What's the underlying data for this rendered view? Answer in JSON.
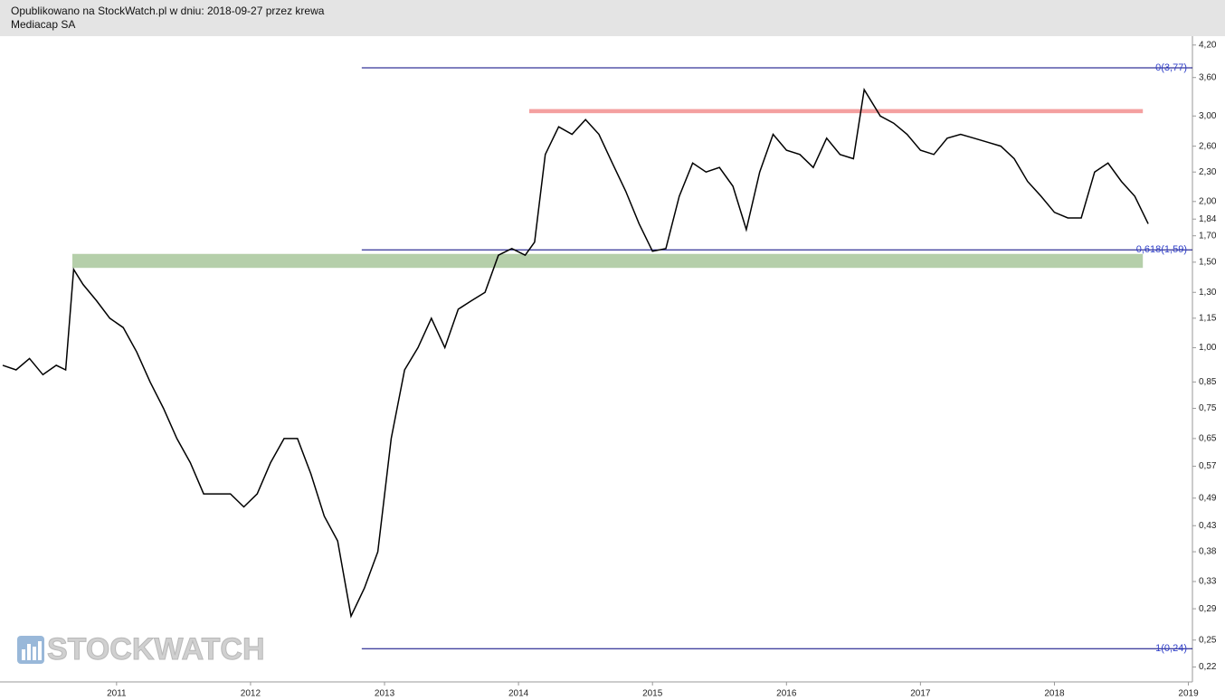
{
  "chart_data": {
    "type": "line",
    "title": "Opublikowano na StockWatch.pl w dniu: 2018-09-27 przez krewa",
    "subtitle": "Mediacap SA",
    "watermark": "STOCKWATCH",
    "color": "#000000",
    "log_scale": true,
    "x": [
      2010.15,
      2010.25,
      2010.35,
      2010.45,
      2010.55,
      2010.62,
      2010.68,
      2010.75,
      2010.85,
      2010.95,
      2011.05,
      2011.15,
      2011.25,
      2011.35,
      2011.45,
      2011.55,
      2011.65,
      2011.75,
      2011.85,
      2011.95,
      2012.05,
      2012.15,
      2012.25,
      2012.35,
      2012.45,
      2012.55,
      2012.65,
      2012.75,
      2012.85,
      2012.95,
      2013.05,
      2013.15,
      2013.25,
      2013.35,
      2013.45,
      2013.55,
      2013.65,
      2013.75,
      2013.85,
      2013.95,
      2014.05,
      2014.12,
      2014.2,
      2014.3,
      2014.4,
      2014.5,
      2014.6,
      2014.7,
      2014.8,
      2014.9,
      2015.0,
      2015.1,
      2015.2,
      2015.3,
      2015.4,
      2015.5,
      2015.6,
      2015.7,
      2015.8,
      2015.9,
      2016.0,
      2016.1,
      2016.2,
      2016.3,
      2016.4,
      2016.5,
      2016.58,
      2016.7,
      2016.8,
      2016.9,
      2017.0,
      2017.1,
      2017.2,
      2017.3,
      2017.4,
      2017.5,
      2017.6,
      2017.7,
      2017.8,
      2017.9,
      2018.0,
      2018.1,
      2018.2,
      2018.3,
      2018.4,
      2018.5,
      2018.6,
      2018.7
    ],
    "values": [
      0.92,
      0.9,
      0.95,
      0.88,
      0.92,
      0.9,
      1.45,
      1.35,
      1.25,
      1.15,
      1.1,
      0.98,
      0.85,
      0.75,
      0.65,
      0.58,
      0.5,
      0.5,
      0.5,
      0.47,
      0.5,
      0.58,
      0.65,
      0.65,
      0.55,
      0.45,
      0.4,
      0.28,
      0.32,
      0.38,
      0.65,
      0.9,
      1.0,
      1.15,
      1.0,
      1.2,
      1.25,
      1.3,
      1.55,
      1.6,
      1.55,
      1.65,
      2.5,
      2.85,
      2.75,
      2.95,
      2.75,
      2.4,
      2.1,
      1.8,
      1.58,
      1.6,
      2.05,
      2.4,
      2.3,
      2.35,
      2.15,
      1.75,
      2.3,
      2.75,
      2.55,
      2.5,
      2.35,
      2.7,
      2.5,
      2.45,
      3.4,
      3.0,
      2.9,
      2.75,
      2.55,
      2.5,
      2.7,
      2.75,
      2.7,
      2.65,
      2.6,
      2.45,
      2.2,
      2.05,
      1.9,
      1.85,
      1.85,
      2.3,
      2.4,
      2.2,
      2.05,
      1.8
    ],
    "xlim": [
      2010.13,
      2019.03
    ],
    "xticks": [
      2011,
      2012,
      2013,
      2014,
      2015,
      2016,
      2017,
      2018,
      2019
    ],
    "ylim": [
      0.205,
      4.38
    ],
    "yticks": [
      {
        "value": 4.2,
        "label": "4,20"
      },
      {
        "value": 3.6,
        "label": "3,60"
      },
      {
        "value": 3.0,
        "label": "3,00"
      },
      {
        "value": 2.6,
        "label": "2,60"
      },
      {
        "value": 2.3,
        "label": "2,30"
      },
      {
        "value": 2.0,
        "label": "2,00"
      },
      {
        "value": 1.84,
        "label": "1,84"
      },
      {
        "value": 1.7,
        "label": "1,70"
      },
      {
        "value": 1.5,
        "label": "1,50"
      },
      {
        "value": 1.3,
        "label": "1,30"
      },
      {
        "value": 1.15,
        "label": "1,15"
      },
      {
        "value": 1.0,
        "label": "1,00"
      },
      {
        "value": 0.85,
        "label": "0,85"
      },
      {
        "value": 0.75,
        "label": "0,75"
      },
      {
        "value": 0.65,
        "label": "0,65"
      },
      {
        "value": 0.57,
        "label": "0,57"
      },
      {
        "value": 0.49,
        "label": "0,49"
      },
      {
        "value": 0.43,
        "label": "0,43"
      },
      {
        "value": 0.38,
        "label": "0,38"
      },
      {
        "value": 0.33,
        "label": "0,33"
      },
      {
        "value": 0.29,
        "label": "0,29"
      },
      {
        "value": 0.25,
        "label": "0,25"
      },
      {
        "value": 0.22,
        "label": "0,22"
      }
    ],
    "fib_levels": [
      {
        "label": "0(3,77)",
        "value": 3.77,
        "x_start": 2012.83
      },
      {
        "label": "0,618(1,59)",
        "value": 1.59,
        "x_start": 2012.83
      },
      {
        "label": "1(0,24)",
        "value": 0.24,
        "x_start": 2012.83
      }
    ],
    "fib_color": "#00007f",
    "zones": [
      {
        "x": [
          2014.08,
          2018.66
        ],
        "y": [
          3.04,
          3.1
        ],
        "color": "#f4a0a0"
      },
      {
        "x": [
          2010.67,
          2018.66
        ],
        "y": [
          1.46,
          1.56
        ],
        "color": "#b5cfaa"
      }
    ]
  }
}
